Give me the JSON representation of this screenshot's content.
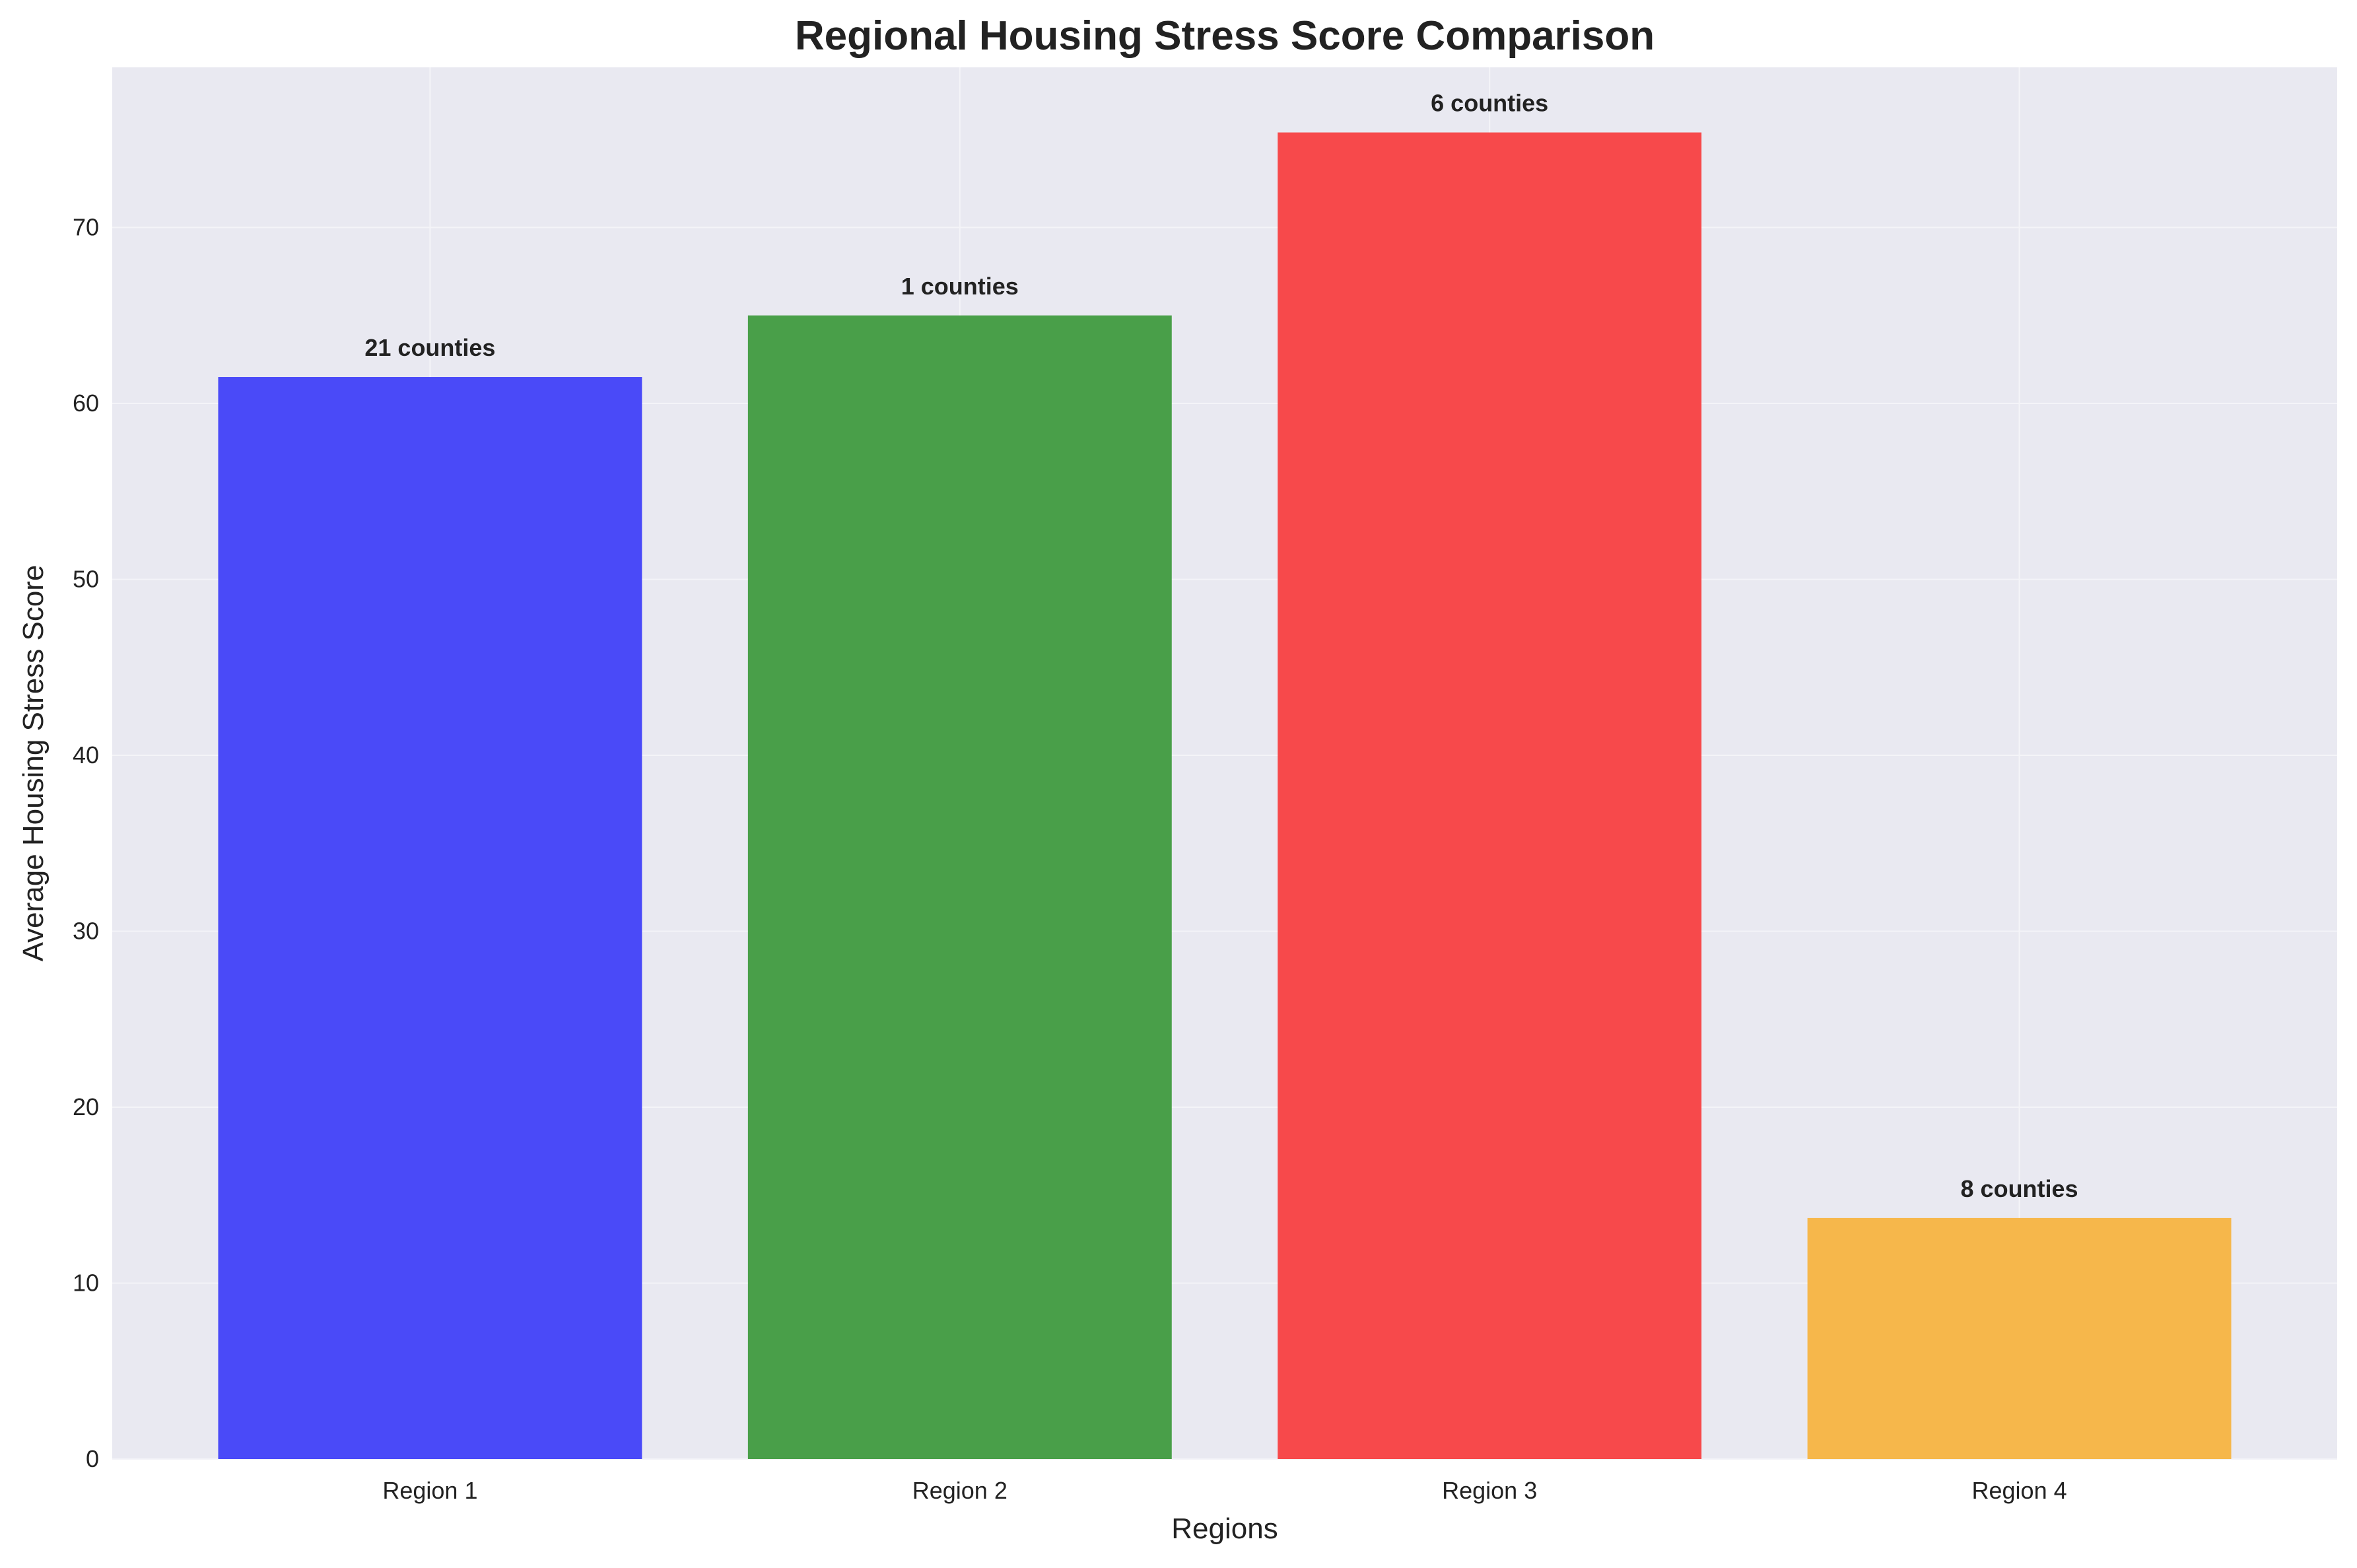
{
  "chart_data": {
    "type": "bar",
    "title": "Regional Housing Stress Score Comparison",
    "xlabel": "Regions",
    "ylabel": "Average Housing Stress Score",
    "categories": [
      "Region 1",
      "Region 2",
      "Region 3",
      "Region 4"
    ],
    "values": [
      61.5,
      65.0,
      75.4,
      13.7
    ],
    "data_labels": [
      "21 counties",
      "1 counties",
      "6 counties",
      "8 counties"
    ],
    "colors": [
      "#4a4af8",
      "#499f49",
      "#f7494b",
      "#f6b74b"
    ],
    "ylim": [
      0,
      79.1
    ],
    "yticks": [
      0,
      10,
      20,
      30,
      40,
      50,
      60,
      70
    ],
    "grid": true,
    "legend": "none",
    "background": "#e9e9f1"
  }
}
